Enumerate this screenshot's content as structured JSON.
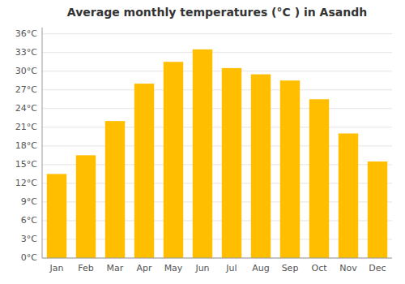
{
  "chart_data": {
    "type": "bar",
    "title": "Average monthly temperatures (°C ) in Asandh",
    "categories": [
      "Jan",
      "Feb",
      "Mar",
      "Apr",
      "May",
      "Jun",
      "Jul",
      "Aug",
      "Sep",
      "Oct",
      "Nov",
      "Dec"
    ],
    "values": [
      13.5,
      16.5,
      22.0,
      28.0,
      31.5,
      33.5,
      30.5,
      29.5,
      28.5,
      25.5,
      20.0,
      15.5
    ],
    "color": "#FFBE00",
    "ylim": [
      0,
      37
    ],
    "yticks": [
      {
        "value": 0,
        "label": "0°C"
      },
      {
        "value": 3,
        "label": "3°C"
      },
      {
        "value": 6,
        "label": "6°C"
      },
      {
        "value": 9,
        "label": "9°C"
      },
      {
        "value": 12,
        "label": "12°C"
      },
      {
        "value": 15,
        "label": "15°C"
      },
      {
        "value": 18,
        "label": "18°C"
      },
      {
        "value": 21,
        "label": "21°C"
      },
      {
        "value": 24,
        "label": "24°C"
      },
      {
        "value": 27,
        "label": "27°C"
      },
      {
        "value": 30,
        "label": "30°C"
      },
      {
        "value": 33,
        "label": "33°C"
      },
      {
        "value": 36,
        "label": "36°C"
      }
    ],
    "grid": true
  }
}
